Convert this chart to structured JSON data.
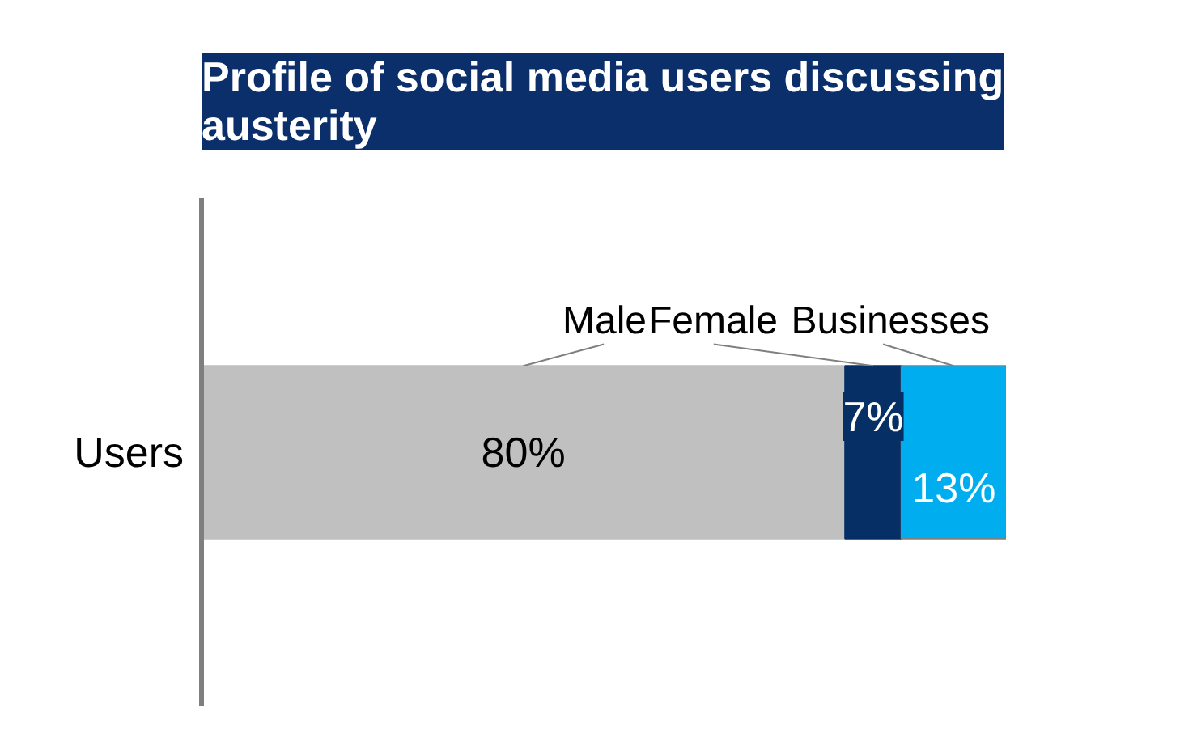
{
  "chart_data": {
    "type": "bar",
    "orientation": "horizontal",
    "stacked": true,
    "title": "Profile of social media users discussing austerity",
    "categories": [
      "Users"
    ],
    "series": [
      {
        "name": "Male",
        "color": "#c0c0c0",
        "values": [
          80
        ],
        "value_labels": [
          "80%"
        ]
      },
      {
        "name": "Female",
        "color": "#062f66",
        "values": [
          7
        ],
        "value_labels": [
          "7%"
        ]
      },
      {
        "name": "Businesses",
        "color": "#00aeef",
        "values": [
          13
        ],
        "value_labels": [
          "13%"
        ]
      }
    ]
  }
}
